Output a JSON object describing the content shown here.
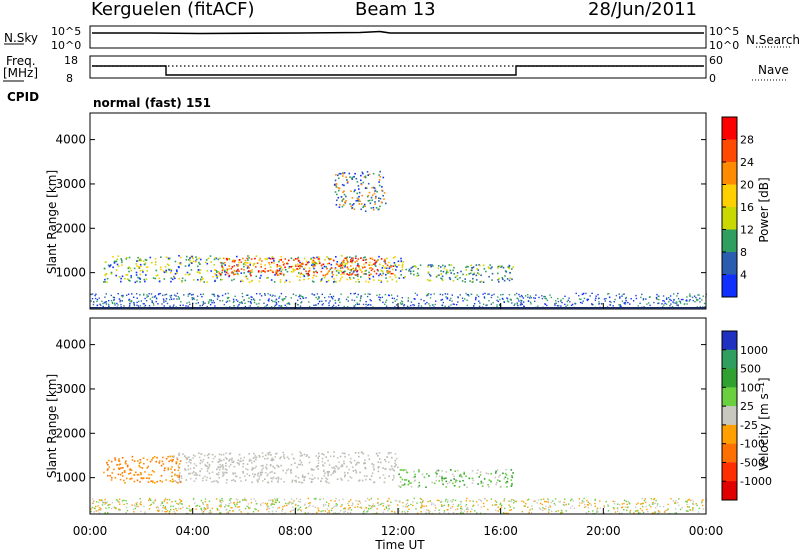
{
  "header": {
    "station": "Kerguelen (fitACF)",
    "beam": "Beam 13",
    "date": "28/Jun/2011"
  },
  "params": {
    "nsky_label": "N.Sky",
    "nsky_ticks": [
      "10^5",
      "10^0"
    ],
    "nsearch_label": "N.Search",
    "nsearch_ticks": [
      "10^5",
      "10^0"
    ],
    "freq_label": "Freq.",
    "freq_unit": "[MHz]",
    "freq_ticks": [
      "18",
      "8"
    ],
    "nave_label": "Nave",
    "nave_ticks": [
      "60",
      "0"
    ],
    "cpid_label": "CPID",
    "cpid_value": "normal (fast) 151"
  },
  "chart_data": [
    {
      "type": "heatmap",
      "name": "power",
      "ylabel": "Slant Range [km]",
      "yticks": [
        1000,
        2000,
        3000,
        4000
      ],
      "ylim": [
        180,
        4600
      ],
      "xlim": [
        0,
        24
      ],
      "colorbar_label": "Power [dB]",
      "colorbar_ticks": [
        "28",
        "24",
        "20",
        "16",
        "12",
        "8",
        "4"
      ],
      "colorbar_colors": [
        "#ff0000",
        "#ff4a00",
        "#ff8c00",
        "#ffd000",
        "#c8d800",
        "#2f9f60",
        "#2a5db0",
        "#1030ff"
      ],
      "features": [
        {
          "t0": 0.5,
          "t1": 12.2,
          "r0": 800,
          "r1": 1400,
          "level": "high"
        },
        {
          "t0": 5.0,
          "t1": 11.8,
          "r0": 950,
          "r1": 1350,
          "level": "max"
        },
        {
          "t0": 12.0,
          "t1": 16.5,
          "r0": 800,
          "r1": 1200,
          "level": "mid"
        },
        {
          "t0": 9.5,
          "t1": 11.5,
          "r0": 2400,
          "r1": 3300,
          "level": "low"
        }
      ]
    },
    {
      "type": "heatmap",
      "name": "velocity",
      "ylabel": "Slant Range [km]",
      "xlabel": "Time UT",
      "yticks": [
        1000,
        2000,
        3000,
        4000
      ],
      "ylim": [
        180,
        4600
      ],
      "xlim": [
        0,
        24
      ],
      "xticks": [
        "00:00",
        "04:00",
        "08:00",
        "12:00",
        "16:00",
        "20:00",
        "00:00"
      ],
      "colorbar_label": "Velocity [m s⁻¹]",
      "colorbar_ticks": [
        "1000",
        "500",
        "100",
        "25",
        "-25",
        "-100",
        "-500",
        "-1000"
      ],
      "colorbar_colors": [
        "#2030c0",
        "#2f9f60",
        "#30a030",
        "#6ad040",
        "#c8c8c0",
        "#ffa000",
        "#ff7000",
        "#ff3000",
        "#e00000"
      ],
      "features": [
        {
          "t0": 3.2,
          "t1": 12.0,
          "r0": 900,
          "r1": 1600,
          "level": "ground"
        },
        {
          "t0": 0.5,
          "t1": 3.5,
          "r0": 900,
          "r1": 1500,
          "level": "neg"
        },
        {
          "t0": 12.0,
          "t1": 16.5,
          "r0": 800,
          "r1": 1200,
          "level": "pos"
        }
      ]
    }
  ]
}
